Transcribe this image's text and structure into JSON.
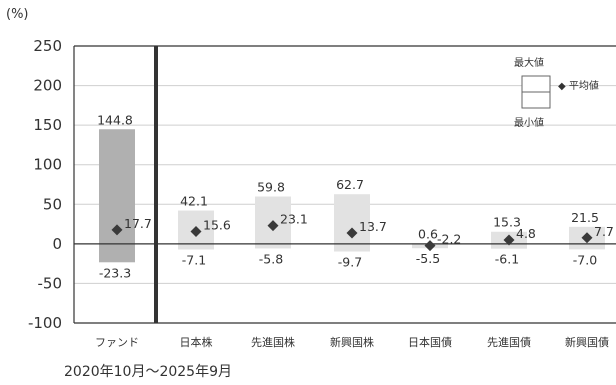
{
  "chart_data": {
    "type": "bar",
    "unit_label": "(%)",
    "period_label": "2020年10月～2025年9月",
    "ylim": [
      -100,
      250
    ],
    "yticks": [
      250,
      200,
      150,
      100,
      50,
      0,
      -50,
      -100
    ],
    "grid": true,
    "categories": [
      "ファンド",
      "日本株",
      "先進国株",
      "新興国株",
      "日本国債",
      "先進国債",
      "新興国債"
    ],
    "series": [
      {
        "name": "最大値",
        "values": [
          144.8,
          42.1,
          59.8,
          62.7,
          0.6,
          15.3,
          21.5
        ]
      },
      {
        "name": "平均値",
        "values": [
          17.7,
          15.6,
          23.1,
          13.7,
          -2.2,
          4.8,
          7.7
        ]
      },
      {
        "name": "最小値",
        "values": [
          -23.3,
          -7.1,
          -5.8,
          -9.7,
          -5.5,
          -6.1,
          -7.0
        ]
      }
    ],
    "max_labels": [
      "144.8",
      "42.1",
      "59.8",
      "62.7",
      "0.6",
      "15.3",
      "21.5"
    ],
    "avg_labels": [
      "17.7",
      "15.6",
      "23.1",
      "13.7",
      "-2.2",
      "4.8",
      "7.7"
    ],
    "min_labels": [
      "-23.3",
      "-7.1",
      "-5.8",
      "-9.7",
      "-5.5",
      "-6.1",
      "-7.0"
    ],
    "legend": {
      "max": "最大値",
      "avg": "◆ 平均値",
      "min": "最小値",
      "placement": "top-right"
    },
    "colors": {
      "fund_bar": "#b0b0b0",
      "asset_bar": "#e2e2e2",
      "marker": "#3a3a3a",
      "axis": "#333333",
      "grid": "#cfcfcf"
    }
  }
}
